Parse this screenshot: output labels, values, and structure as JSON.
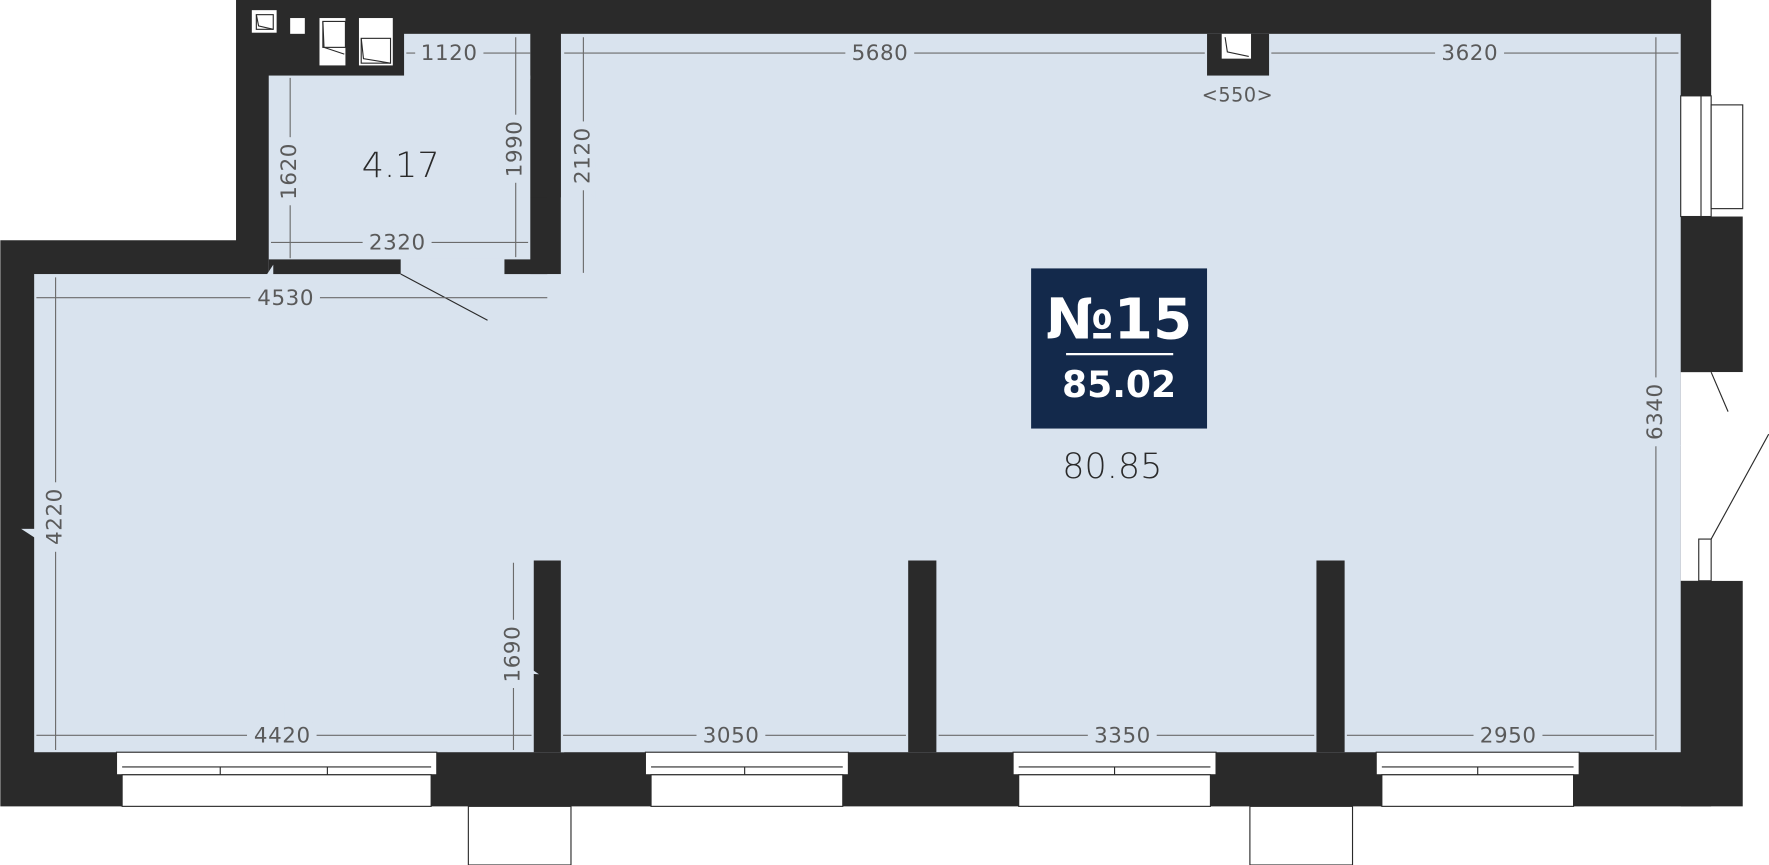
{
  "plan": {
    "apartment_number": "№15",
    "total_area": "85.02",
    "rooms": [
      {
        "name": "main",
        "area": "80.85"
      },
      {
        "name": "bathroom",
        "area": "4.17"
      }
    ],
    "dimensions": {
      "bath_top": "1120",
      "top_middle": "5680",
      "top_right": "3620",
      "shaft": "<550>",
      "bath_left": "1620",
      "bath_right": "1990",
      "partition": "2120",
      "bath_bottom": "2320",
      "entry_width": "4530",
      "right_height": "6340",
      "left_height": "4220",
      "column_depth": "1690",
      "bottom_1": "4420",
      "bottom_2": "3050",
      "bottom_3": "3350",
      "bottom_4": "2950"
    },
    "colors": {
      "wall": "#2a2a2a",
      "floor": "#d9e3ee",
      "badge": "#13294b"
    }
  }
}
